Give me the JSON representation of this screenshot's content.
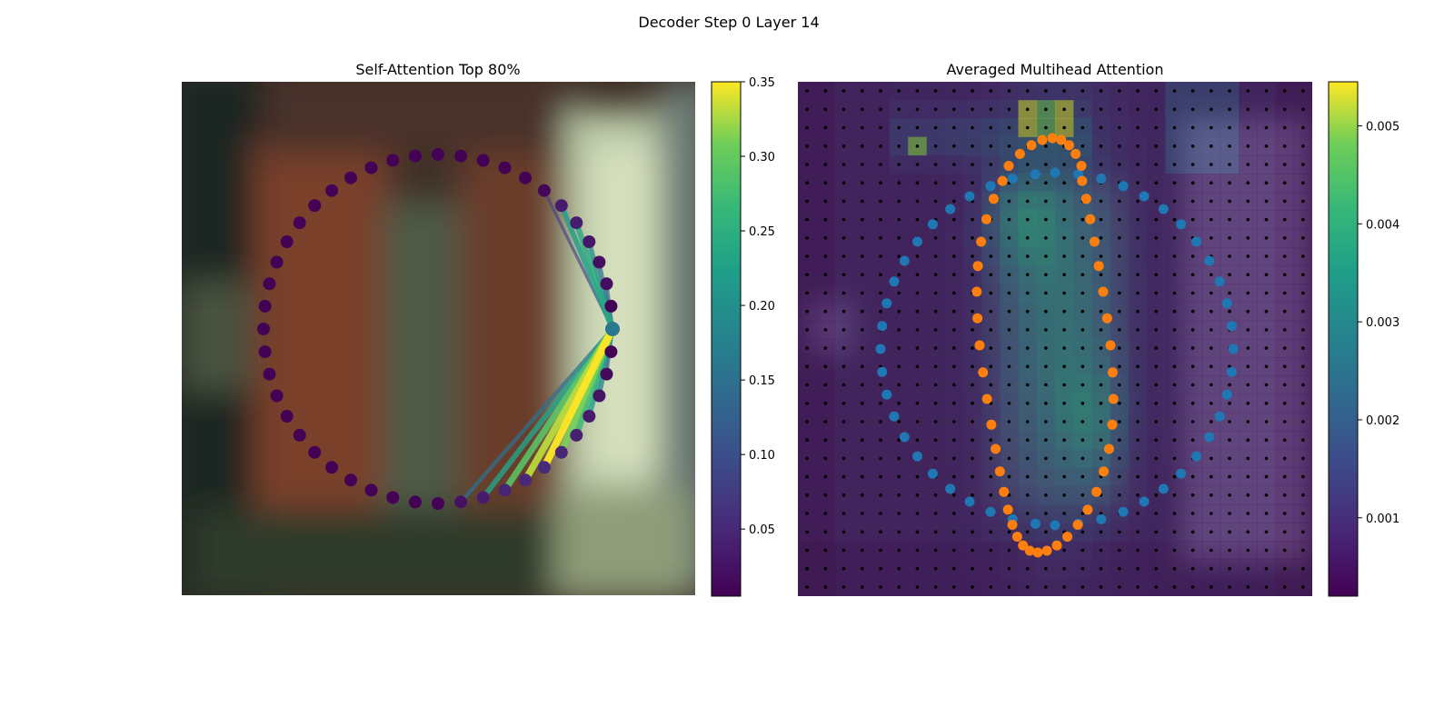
{
  "figure": {
    "title": "Decoder Step 0 Layer 14"
  },
  "chart_data": [
    {
      "type": "scatter",
      "title": "Self-Attention Top 80%",
      "description_kind": "attention graph over 48 contour points arranged in a circle on a blurred background image",
      "num_points": 48,
      "query_point_index": 12,
      "edges": [
        {
          "to": 5,
          "weight": 0.08
        },
        {
          "to": 6,
          "weight": 0.22
        },
        {
          "to": 7,
          "weight": 0.24
        },
        {
          "to": 8,
          "weight": 0.19
        },
        {
          "to": 9,
          "weight": 0.14
        },
        {
          "to": 10,
          "weight": 0.12
        },
        {
          "to": 14,
          "weight": 0.1
        },
        {
          "to": 15,
          "weight": 0.17
        },
        {
          "to": 16,
          "weight": 0.22
        },
        {
          "to": 17,
          "weight": 0.27
        },
        {
          "to": 18,
          "weight": 0.31
        },
        {
          "to": 19,
          "weight": 0.35
        },
        {
          "to": 20,
          "weight": 0.33
        },
        {
          "to": 21,
          "weight": 0.29
        },
        {
          "to": 22,
          "weight": 0.23
        },
        {
          "to": 23,
          "weight": 0.15
        }
      ],
      "colorbar": {
        "cmap": "viridis",
        "range": [
          0.005,
          0.35
        ],
        "ticks": [
          "0.05",
          "0.10",
          "0.15",
          "0.20",
          "0.25",
          "0.30",
          "0.35"
        ],
        "tick_values": [
          0.05,
          0.1,
          0.15,
          0.2,
          0.25,
          0.3,
          0.35
        ]
      }
    },
    {
      "type": "heatmap",
      "title": "Averaged Multihead Attention",
      "grid_size": [
        28,
        28
      ],
      "overlay_points": [
        {
          "name": "blue contour",
          "color": "#1f77b4",
          "shape": "circle",
          "count": 48
        },
        {
          "name": "orange contour",
          "color": "#ff7f0e",
          "shape": "elongated loop",
          "count": 48
        }
      ],
      "colorbar": {
        "cmap": "viridis",
        "range": [
          0.0002,
          0.00545
        ],
        "ticks": [
          "0.001",
          "0.002",
          "0.003",
          "0.004",
          "0.005"
        ],
        "tick_values": [
          0.001,
          0.002,
          0.003,
          0.004,
          0.005
        ]
      }
    }
  ]
}
